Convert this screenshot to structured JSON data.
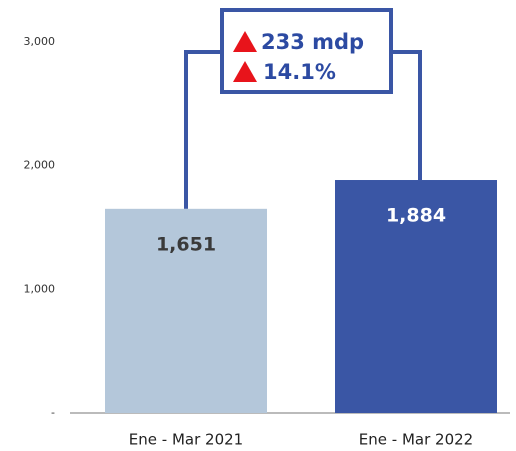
{
  "chart_data": {
    "type": "bar",
    "categories": [
      "Ene - Mar 2021",
      "Ene - Mar 2022"
    ],
    "values": [
      1651,
      1884
    ],
    "value_labels": [
      "1,651",
      "1,884"
    ],
    "colors": [
      "#b4c7da",
      "#3a56a5"
    ],
    "value_label_colors": [
      "#3a3a3a",
      "#ffffff"
    ],
    "ylim": [
      0,
      3000
    ],
    "yticks": [
      {
        "value": 0,
        "label": "-"
      },
      {
        "value": 1000,
        "label": "1,000"
      },
      {
        "value": 2000,
        "label": "2,000"
      },
      {
        "value": 3000,
        "label": "3,000"
      }
    ],
    "grid": false,
    "annotations": [
      "233 mdp",
      "14.1%"
    ],
    "annotation_color": "#3a56a5"
  }
}
